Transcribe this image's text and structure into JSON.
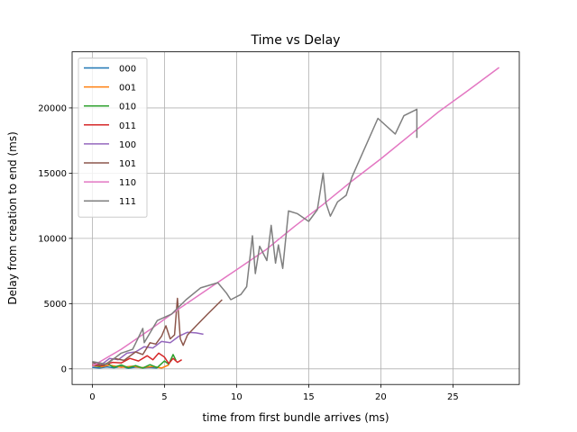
{
  "chart_data": {
    "type": "line",
    "title": "Time vs Delay",
    "xlabel": "time from first bundle arrives (ms)",
    "ylabel": "Delay from creation to end (ms)",
    "xlim": [
      -1.4,
      29.6
    ],
    "ylim": [
      -1200,
      24300
    ],
    "xticks": [
      0,
      5,
      10,
      15,
      20,
      25
    ],
    "yticks": [
      0,
      5000,
      10000,
      15000,
      20000
    ],
    "grid": true,
    "legend_position": "upper-left",
    "series": [
      {
        "name": "000",
        "color": "#1f77b4",
        "x": [
          0,
          0.5,
          1,
          1.5,
          2,
          2.5,
          3,
          3.5,
          4,
          4.5
        ],
        "y": [
          120,
          60,
          150,
          80,
          180,
          50,
          130,
          70,
          110,
          60
        ]
      },
      {
        "name": "001",
        "color": "#ff7f0e",
        "x": [
          0,
          0.6,
          1.2,
          2,
          2.8,
          3.4,
          4.2,
          4.8,
          5.3
        ],
        "y": [
          250,
          150,
          280,
          120,
          200,
          90,
          180,
          60,
          300
        ]
      },
      {
        "name": "010",
        "color": "#2ca02c",
        "x": [
          0,
          0.5,
          1,
          1.5,
          2,
          2.5,
          3,
          3.5,
          4,
          4.5,
          5,
          5.3,
          5.6,
          5.8
        ],
        "y": [
          300,
          180,
          420,
          120,
          300,
          80,
          250,
          60,
          320,
          100,
          600,
          350,
          1100,
          650
        ]
      },
      {
        "name": "011",
        "color": "#d62728",
        "x": [
          0,
          0.7,
          1.4,
          2,
          2.6,
          3.2,
          3.8,
          4.2,
          4.6,
          5,
          5.3,
          5.6,
          5.9,
          6.2
        ],
        "y": [
          300,
          250,
          500,
          450,
          800,
          600,
          1000,
          700,
          1200,
          900,
          400,
          800,
          500,
          700
        ]
      },
      {
        "name": "100",
        "color": "#9467bd",
        "x": [
          0,
          0.6,
          1.2,
          1.8,
          2.4,
          3,
          3.6,
          4.2,
          4.8,
          5.4,
          6,
          6.6,
          7.2,
          7.7
        ],
        "y": [
          450,
          300,
          800,
          700,
          1200,
          1300,
          1700,
          1600,
          2100,
          2000,
          2500,
          2800,
          2750,
          2650
        ]
      },
      {
        "name": "101",
        "color": "#8c564b",
        "x": [
          0,
          0.8,
          1.5,
          2.2,
          3,
          3.5,
          4,
          4.4,
          4.8,
          5.1,
          5.4,
          5.7,
          5.9,
          6.1,
          6.3,
          6.6,
          7.2,
          8,
          9
        ],
        "y": [
          500,
          250,
          800,
          650,
          1300,
          1100,
          2000,
          1900,
          2500,
          3300,
          2300,
          2600,
          5400,
          2300,
          1800,
          2600,
          3300,
          4200,
          5300
        ]
      },
      {
        "name": "110",
        "color": "#e377c2",
        "x": [
          0,
          2,
          4,
          6,
          8,
          10,
          12,
          14,
          16,
          18,
          20,
          22,
          24,
          26,
          28.2
        ],
        "y": [
          200,
          1500,
          3000,
          4600,
          6100,
          7600,
          9100,
          10900,
          12600,
          14400,
          16100,
          17900,
          19700,
          21300,
          23100
        ]
      },
      {
        "name": "111",
        "color": "#7f7f7f",
        "x": [
          0,
          1,
          2,
          2.8,
          3.5,
          3.6,
          4.5,
          5.5,
          6.5,
          7.5,
          8.7,
          9.3,
          9.6,
          10.3,
          10.7,
          11.1,
          11.3,
          11.6,
          12.1,
          12.4,
          12.7,
          12.9,
          13.2,
          13.6,
          14.2,
          15,
          15.6,
          16,
          16.2,
          16.5,
          17,
          17.6,
          18,
          18.4,
          19.8,
          21,
          21.6,
          22.5,
          22.5
        ],
        "y": [
          550,
          350,
          1200,
          1500,
          3100,
          2000,
          3700,
          4200,
          5300,
          6200,
          6600,
          5800,
          5300,
          5700,
          6300,
          10200,
          7300,
          9400,
          8300,
          11000,
          8100,
          9500,
          7700,
          12100,
          11900,
          11300,
          12200,
          15000,
          12700,
          11700,
          12800,
          13300,
          14700,
          15700,
          19200,
          18000,
          19400,
          19900,
          17700
        ]
      }
    ]
  }
}
